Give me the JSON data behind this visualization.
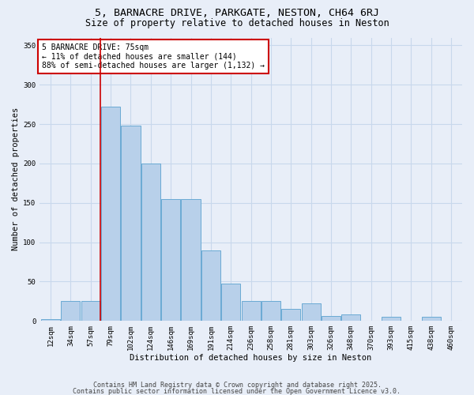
{
  "title": "5, BARNACRE DRIVE, PARKGATE, NESTON, CH64 6RJ",
  "subtitle": "Size of property relative to detached houses in Neston",
  "xlabel": "Distribution of detached houses by size in Neston",
  "ylabel": "Number of detached properties",
  "categories": [
    "12sqm",
    "34sqm",
    "57sqm",
    "79sqm",
    "102sqm",
    "124sqm",
    "146sqm",
    "169sqm",
    "191sqm",
    "214sqm",
    "236sqm",
    "258sqm",
    "281sqm",
    "303sqm",
    "326sqm",
    "348sqm",
    "370sqm",
    "393sqm",
    "415sqm",
    "438sqm",
    "460sqm"
  ],
  "values": [
    2,
    25,
    25,
    272,
    248,
    200,
    155,
    155,
    90,
    47,
    25,
    25,
    15,
    22,
    6,
    8,
    0,
    5,
    0,
    5,
    0
  ],
  "bar_color": "#b8d0ea",
  "bar_edge_color": "#6aaad4",
  "grid_color": "#c8d8ec",
  "background_color": "#e8eef8",
  "annotation_box_text": "5 BARNACRE DRIVE: 75sqm\n← 11% of detached houses are smaller (144)\n88% of semi-detached houses are larger (1,132) →",
  "annotation_box_color": "#ffffff",
  "annotation_box_edge_color": "#cc0000",
  "vline_x_index": 2,
  "vline_color": "#cc0000",
  "ylim": [
    0,
    360
  ],
  "yticks": [
    0,
    50,
    100,
    150,
    200,
    250,
    300,
    350
  ],
  "footer_line1": "Contains HM Land Registry data © Crown copyright and database right 2025.",
  "footer_line2": "Contains public sector information licensed under the Open Government Licence v3.0.",
  "title_fontsize": 9.5,
  "subtitle_fontsize": 8.5,
  "axis_label_fontsize": 7.5,
  "tick_fontsize": 6.5,
  "annotation_fontsize": 7,
  "footer_fontsize": 6
}
